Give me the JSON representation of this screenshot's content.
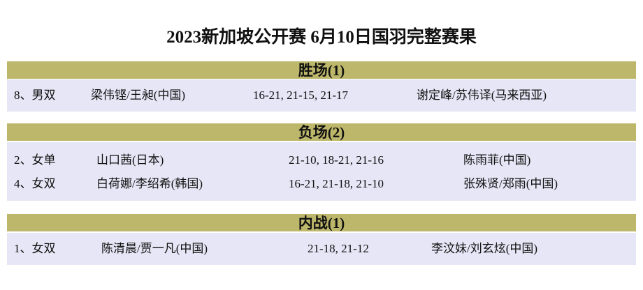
{
  "title": "2023新加坡公开赛  6月10日国羽完整赛果",
  "sections": [
    {
      "header": "胜场(1)",
      "rows": [
        {
          "event": "8、男双",
          "player1": "梁伟铿/王昶(中国)",
          "score": "16-21, 21-15, 21-17",
          "player2": "谢定峰/苏伟译(马来西亚)"
        }
      ]
    },
    {
      "header": "负场(2)",
      "rows": [
        {
          "event": "2、女单",
          "player1": "山口茜(日本)",
          "score": "21-10, 18-21, 21-16",
          "player2": "陈雨菲(中国)"
        },
        {
          "event": "4、女双",
          "player1": "白荷娜/李绍希(韩国)",
          "score": "16-21, 21-18, 21-10",
          "player2": "张殊贤/郑雨(中国)"
        }
      ]
    },
    {
      "header": "内战(1)",
      "rows": [
        {
          "event": "1、女双",
          "player1": "陈清晨/贾一凡(中国)",
          "score": "21-18, 21-12",
          "player2": "李汶妹/刘玄炫(中国)"
        }
      ]
    }
  ],
  "colors": {
    "header_bg": "#bdb76b",
    "row_bg": "#e6e6f6"
  }
}
